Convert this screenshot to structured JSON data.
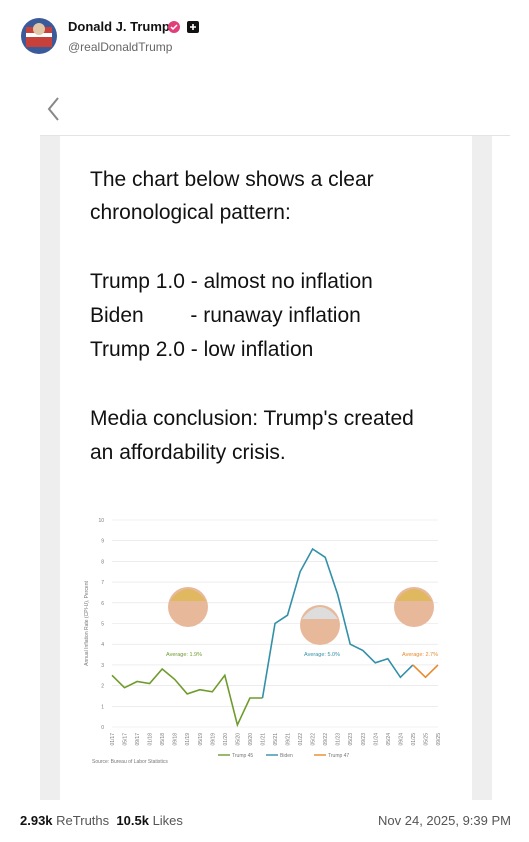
{
  "header": {
    "name": "Donald J. Trump",
    "handle": "@realDonaldTrump"
  },
  "post": {
    "text_lines": [
      "The chart below shows a clear",
      "chronological pattern:",
      "Trump 1.0 - almost no inflation",
      "Biden        - runaway inflation",
      "Trump 2.0 - low inflation",
      "Media conclusion: Trump's created",
      "an affordability crisis."
    ]
  },
  "chart_data": {
    "type": "line",
    "y_label": "Annual Inflation Rate (CPI-U), Percent",
    "source": "Source: Bureau of Labor Statistics",
    "categories": [
      "01/17",
      "05/17",
      "09/17",
      "01/18",
      "05/18",
      "09/18",
      "01/19",
      "05/19",
      "09/19",
      "01/20",
      "05/20",
      "09/20",
      "01/21",
      "05/21",
      "09/21",
      "01/22",
      "05/22",
      "09/22",
      "01/23",
      "05/23",
      "09/23",
      "01/24",
      "05/24",
      "09/24",
      "01/25",
      "05/25",
      "09/25"
    ],
    "series": [
      {
        "name": "Trump 45",
        "color": "#6e9b2c",
        "values": [
          2.5,
          1.9,
          2.2,
          2.1,
          2.8,
          2.3,
          1.6,
          1.8,
          1.7,
          2.5,
          0.1,
          1.4,
          1.4,
          null,
          null,
          null,
          null,
          null,
          null,
          null,
          null,
          null,
          null,
          null,
          null,
          null,
          null
        ]
      },
      {
        "name": "Biden",
        "color": "#3390a8",
        "values": [
          null,
          null,
          null,
          null,
          null,
          null,
          null,
          null,
          null,
          null,
          null,
          null,
          1.4,
          5.0,
          5.4,
          7.5,
          8.6,
          8.2,
          6.4,
          4.0,
          3.7,
          3.1,
          3.3,
          2.4,
          3.0,
          null,
          null
        ]
      },
      {
        "name": "Trump 47",
        "color": "#e8892a",
        "values": [
          null,
          null,
          null,
          null,
          null,
          null,
          null,
          null,
          null,
          null,
          null,
          null,
          null,
          null,
          null,
          null,
          null,
          null,
          null,
          null,
          null,
          null,
          null,
          null,
          3.0,
          2.4,
          3.0
        ]
      }
    ],
    "annotations": [
      {
        "text": "Average: 1.9%",
        "color": "#6e9b2c"
      },
      {
        "text": "Average: 5.0%",
        "color": "#3390a8"
      },
      {
        "text": "Average: 2.7%",
        "color": "#e8892a"
      }
    ],
    "ylim": [
      0,
      10
    ],
    "yticks": [
      0,
      1,
      2,
      3,
      4,
      5,
      6,
      7,
      8,
      9,
      10
    ],
    "grid": true
  },
  "footer": {
    "retruths_count": "2.93k",
    "retruths_label": "ReTruths",
    "likes_count": "10.5k",
    "likes_label": "Likes",
    "timestamp": "Nov 24, 2025, 9:39 PM"
  }
}
